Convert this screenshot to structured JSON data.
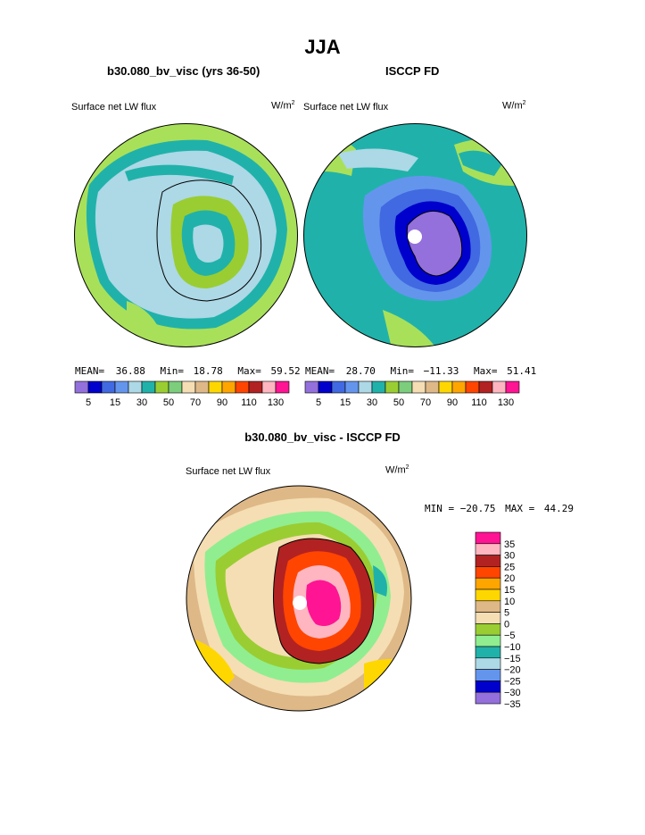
{
  "main_title": "JJA",
  "panels": [
    {
      "title": "b30.080_bv_visc (yrs 36-50)",
      "variable": "Surface net LW flux",
      "units_base": "W/m",
      "units_sup": "2",
      "stats": {
        "mean_label": "MEAN=",
        "mean": "36.88",
        "min_label": "Min=",
        "min": "18.78",
        "max_label": "Max=",
        "max": "59.52"
      }
    },
    {
      "title": "ISCCP FD",
      "variable": "Surface net LW flux",
      "units_base": "W/m",
      "units_sup": "2",
      "stats": {
        "mean_label": "MEAN=",
        "mean": "28.70",
        "min_label": "Min=",
        "min": "−11.33",
        "max_label": "Max=",
        "max": "51.41"
      }
    }
  ],
  "colorbar_top": {
    "colors": [
      "#9370DB",
      "#0000CD",
      "#4169E1",
      "#6495ED",
      "#ADD8E6",
      "#20B2AA",
      "#9ACD32",
      "#7CCD7C",
      "#F5DEB3",
      "#DEB887",
      "#FFD700",
      "#FFA500",
      "#FF4500",
      "#B22222",
      "#FFB6C1",
      "#FF1493"
    ],
    "labels": [
      "5",
      "15",
      "30",
      "50",
      "70",
      "90",
      "110",
      "130"
    ]
  },
  "diff_panel": {
    "title": "b30.080_bv_visc - ISCCP FD",
    "variable": "Surface net LW flux",
    "units_base": "W/m",
    "units_sup": "2",
    "stats": {
      "min_label": "MIN =",
      "min": "−20.75",
      "max_label": "MAX =",
      "max": "44.29"
    }
  },
  "colorbar_diff": {
    "colors": [
      "#FF1493",
      "#FFB6C1",
      "#B22222",
      "#FF4500",
      "#FFA500",
      "#FFD700",
      "#DEB887",
      "#F5DEB3",
      "#9ACD32",
      "#90EE90",
      "#20B2AA",
      "#ADD8E6",
      "#6495ED",
      "#0000CD",
      "#9370DB"
    ],
    "labels": [
      "35",
      "30",
      "25",
      "20",
      "15",
      "10",
      "5",
      "0",
      "−5",
      "−10",
      "−15",
      "−20",
      "−25",
      "−30",
      "−35"
    ]
  }
}
